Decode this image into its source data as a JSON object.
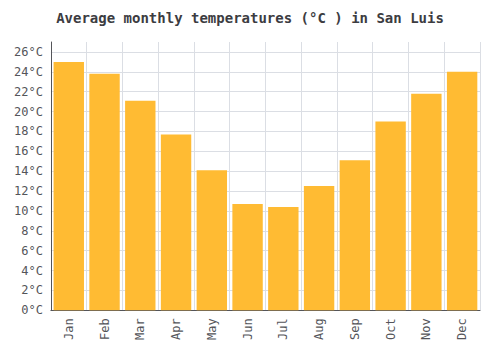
{
  "chart_data": {
    "type": "bar",
    "title": "Average monthly temperatures (°C ) in San Luis",
    "categories": [
      "Jan",
      "Feb",
      "Mar",
      "Apr",
      "May",
      "Jun",
      "Jul",
      "Aug",
      "Sep",
      "Oct",
      "Nov",
      "Dec"
    ],
    "values": [
      25.0,
      23.8,
      21.1,
      17.7,
      14.1,
      10.7,
      10.4,
      12.5,
      15.1,
      19.0,
      21.8,
      24.0
    ],
    "color": "#FFBB33",
    "ylim": [
      0,
      27
    ],
    "yticks": [
      {
        "value": 0,
        "label": "0°C"
      },
      {
        "value": 2,
        "label": "2°C"
      },
      {
        "value": 4,
        "label": "4°C"
      },
      {
        "value": 6,
        "label": "6°C"
      },
      {
        "value": 8,
        "label": "8°C"
      },
      {
        "value": 10,
        "label": "10°C"
      },
      {
        "value": 12,
        "label": "12°C"
      },
      {
        "value": 14,
        "label": "14°C"
      },
      {
        "value": 16,
        "label": "16°C"
      },
      {
        "value": 18,
        "label": "18°C"
      },
      {
        "value": 20,
        "label": "20°C"
      },
      {
        "value": 22,
        "label": "22°C"
      },
      {
        "value": 24,
        "label": "24°C"
      },
      {
        "value": 26,
        "label": "26°C"
      }
    ],
    "grid": true
  }
}
